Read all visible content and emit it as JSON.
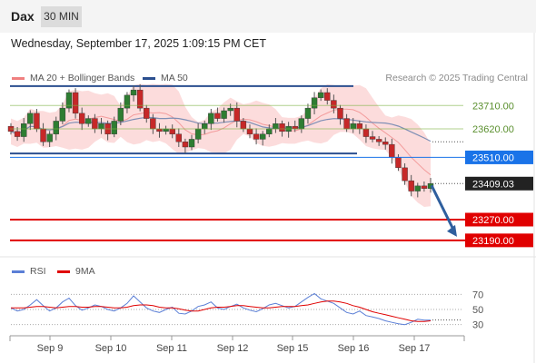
{
  "header": {
    "symbol": "Dax",
    "timeframe": "30 MIN"
  },
  "datetime": "Wednesday, September 17, 2025 1:09:15 PM CET",
  "legend": {
    "ma20": {
      "label": "MA 20 + Bollinger Bands",
      "color": "#f08080"
    },
    "ma50": {
      "label": "MA 50",
      "color": "#2b4f8f"
    },
    "credit": "Research © 2025 Trading Central"
  },
  "rsi_legend": {
    "rsi": {
      "label": "RSI",
      "color": "#5b7fd6"
    },
    "ma9": {
      "label": "9MA",
      "color": "#e00000"
    }
  },
  "chart_data": [
    {
      "type": "line",
      "title": "",
      "x_tick_labels": [
        "Sep 9",
        "Sep 10",
        "Sep 11",
        "Sep 12",
        "Sep 15",
        "Sep 16",
        "Sep 17"
      ],
      "ylim": [
        23130,
        23760
      ],
      "price_path": [
        23610,
        23590,
        23640,
        23680,
        23620,
        23570,
        23600,
        23650,
        23700,
        23760,
        23680,
        23640,
        23660,
        23620,
        23640,
        23600,
        23650,
        23700,
        23750,
        23770,
        23700,
        23660,
        23620,
        23610,
        23620,
        23600,
        23570,
        23550,
        23580,
        23620,
        23640,
        23680,
        23660,
        23690,
        23700,
        23650,
        23620,
        23600,
        23580,
        23600,
        23620,
        23640,
        23610,
        23630,
        23620,
        23660,
        23700,
        23740,
        23760,
        23730,
        23700,
        23660,
        23620,
        23640,
        23620,
        23590,
        23580,
        23570,
        23560,
        23510,
        23470,
        23420,
        23380,
        23400,
        23390,
        23409
      ],
      "levels": [
        {
          "label": "23710.00",
          "value": 23710,
          "role": "resistance",
          "color": "#7cb342"
        },
        {
          "label": "23620.00",
          "value": 23620,
          "role": "resistance",
          "color": "#7cb342"
        },
        {
          "label": "23510.00",
          "value": 23510,
          "role": "pivot",
          "color": "#1a73e8"
        },
        {
          "label": "23270.00",
          "value": 23270,
          "role": "support",
          "color": "#e00000"
        },
        {
          "label": "23190.00",
          "value": 23190,
          "role": "support",
          "color": "#e00000"
        }
      ],
      "last_price": {
        "label": "23409.03",
        "value": 23409.03
      },
      "range_lines": [
        23785,
        23525
      ],
      "forecast": {
        "direction": "down",
        "target": 23190
      }
    },
    {
      "type": "line",
      "title": "",
      "ylim": [
        20,
        80
      ],
      "y_tick_labels": [
        "70",
        "50",
        "30"
      ],
      "guide_levels": [
        70,
        50,
        30
      ],
      "series": [
        {
          "name": "RSI",
          "values": [
            52,
            48,
            50,
            56,
            63,
            55,
            48,
            52,
            60,
            65,
            55,
            49,
            52,
            56,
            54,
            50,
            48,
            52,
            58,
            68,
            60,
            52,
            48,
            46,
            50,
            53,
            45,
            44,
            48,
            54,
            56,
            60,
            52,
            50,
            54,
            57,
            52,
            49,
            47,
            51,
            56,
            58,
            55,
            52,
            54,
            60,
            66,
            71,
            64,
            61,
            58,
            52,
            46,
            44,
            48,
            42,
            40,
            38,
            35,
            33,
            31,
            30,
            33,
            37,
            36,
            36
          ]
        },
        {
          "name": "9MA",
          "values": [
            52,
            52,
            52,
            53,
            54,
            54,
            53,
            52,
            53,
            54,
            54,
            53,
            53,
            54,
            54,
            53,
            52,
            52,
            53,
            55,
            56,
            56,
            55,
            53,
            52,
            52,
            51,
            49,
            48,
            48,
            50,
            52,
            53,
            53,
            54,
            55,
            55,
            54,
            53,
            52,
            52,
            53,
            54,
            54,
            54,
            55,
            56,
            58,
            60,
            61,
            61,
            60,
            58,
            55,
            53,
            50,
            47,
            45,
            43,
            41,
            39,
            37,
            35,
            34,
            34,
            35
          ]
        }
      ]
    }
  ]
}
